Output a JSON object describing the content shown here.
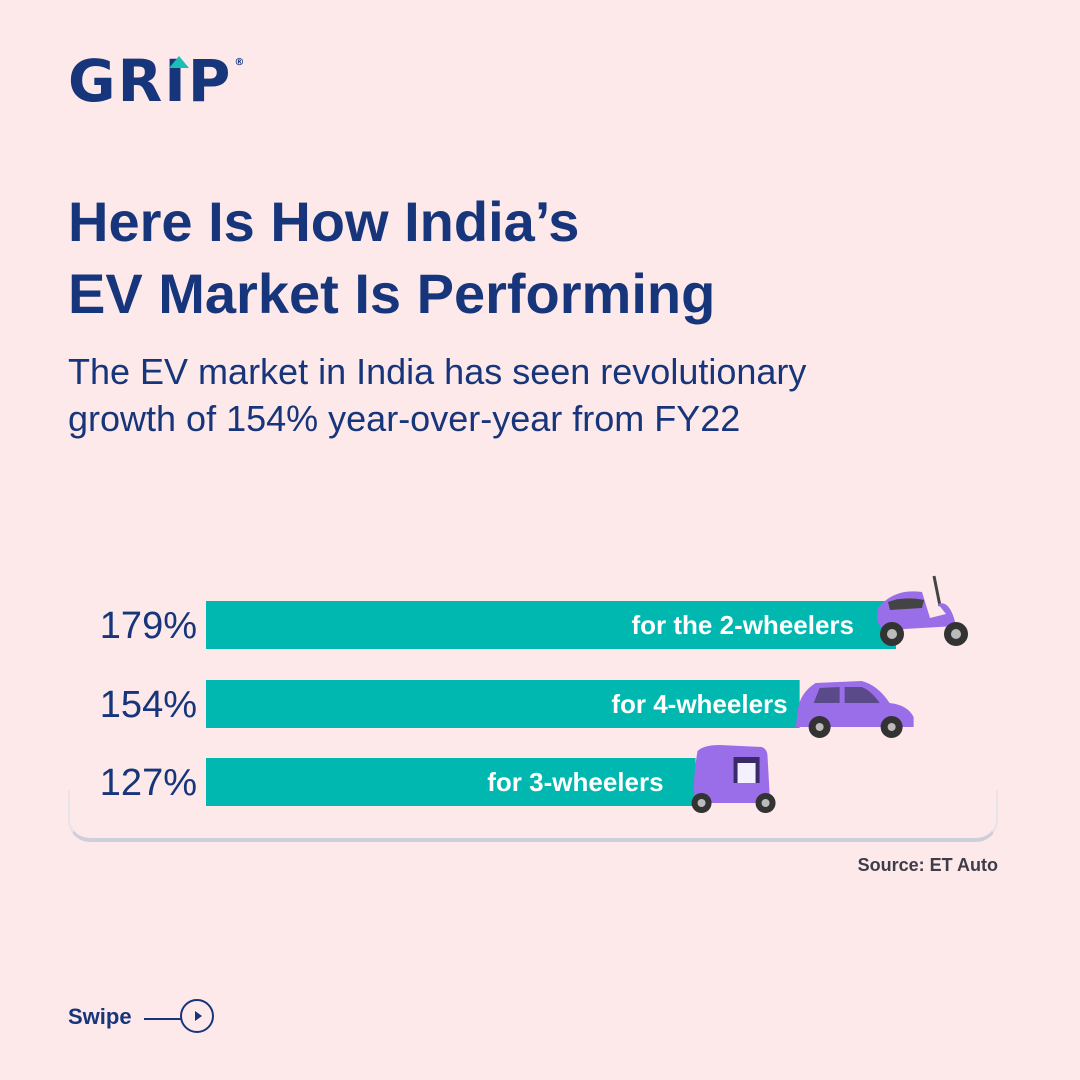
{
  "brand": {
    "name": "GRIP",
    "registered_mark": "®"
  },
  "title_lines": [
    "Here Is How India’s",
    "EV Market Is Performing"
  ],
  "subtitle_lines": [
    "The EV market in India has seen revolutionary",
    "growth of 154% year-over-year from FY22"
  ],
  "source": "Source: ET Auto",
  "swipe": {
    "label": "Swipe"
  },
  "colors": {
    "background": "#fde8ea",
    "navy": "#16357a",
    "bar": "#00b8b0",
    "vehicle": "#9a6ee8",
    "logo_accent": "#1bbfb5"
  },
  "chart_data": {
    "type": "bar",
    "orientation": "horizontal",
    "categories": [
      "for the 2-wheelers",
      "for 4-wheelers",
      "for 3-wheelers"
    ],
    "values": [
      179,
      154,
      127
    ],
    "value_labels": [
      "179%",
      "154%",
      "127%"
    ],
    "icons": [
      "scooter-icon",
      "car-icon",
      "auto-rickshaw-icon"
    ],
    "unit": "%",
    "grid": false,
    "legend": "none"
  }
}
